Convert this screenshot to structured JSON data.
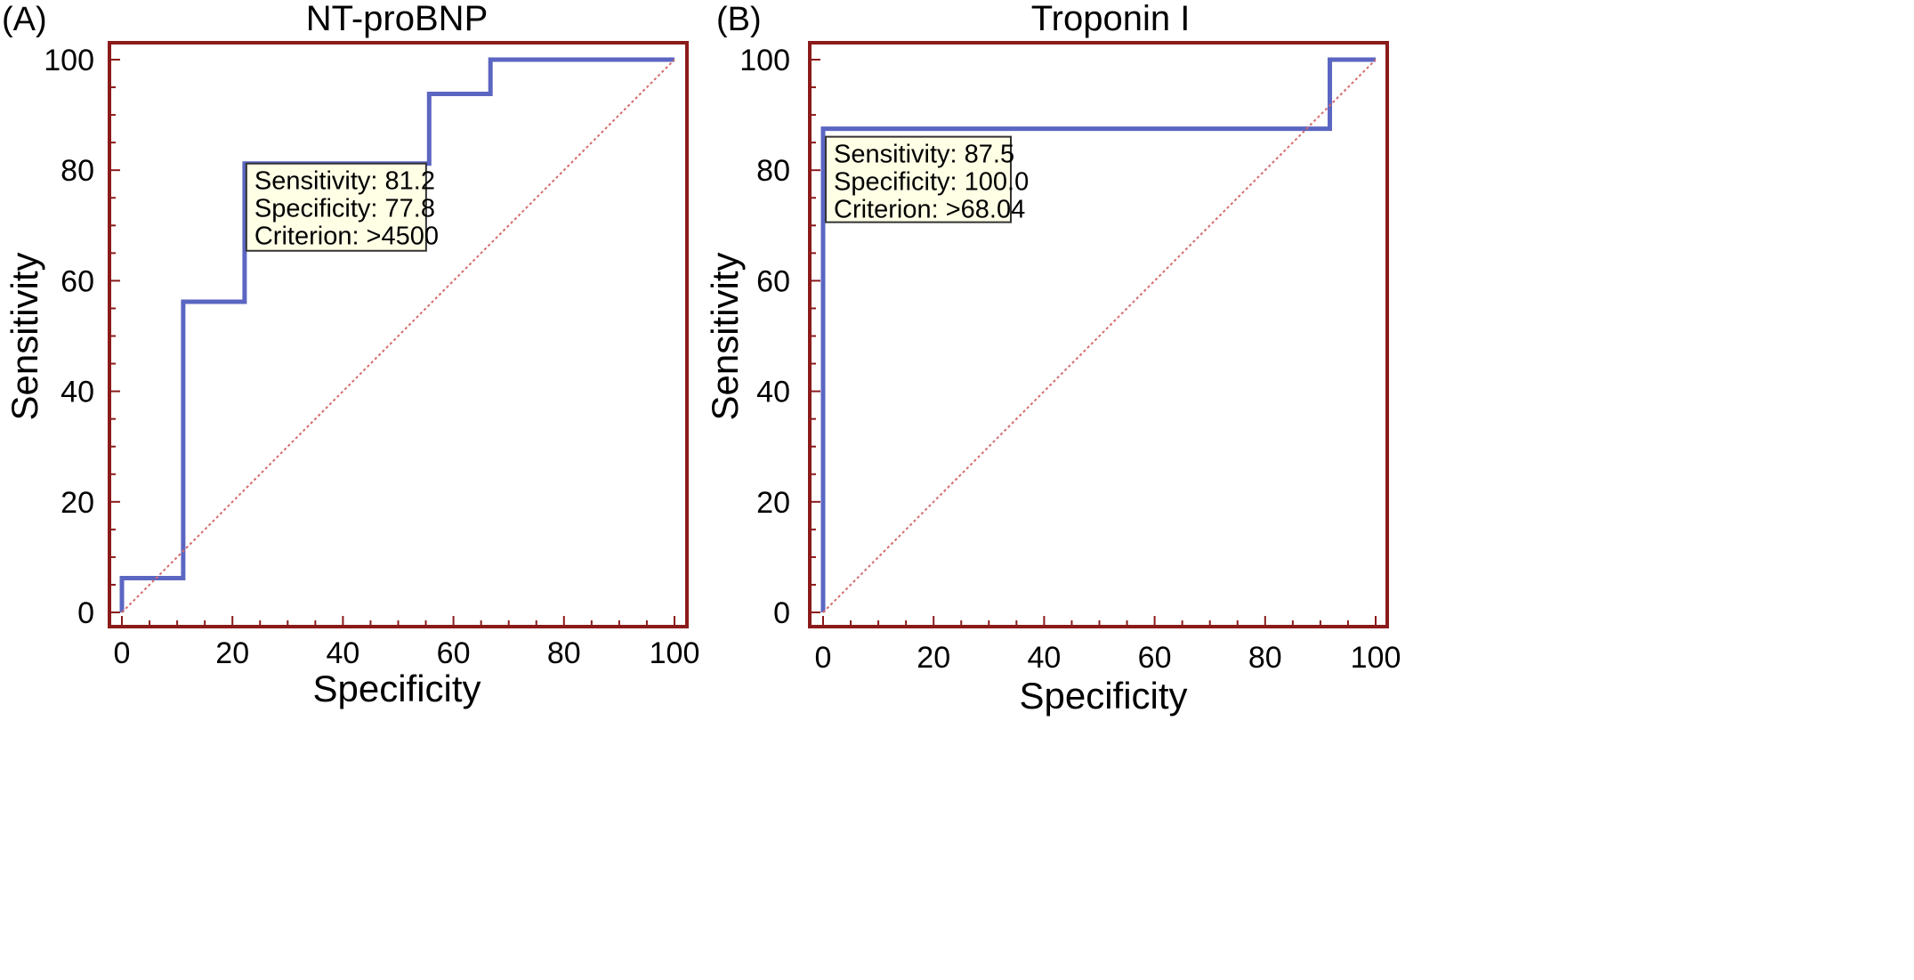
{
  "figure": {
    "panel_labels": [
      "(A)",
      "(B)"
    ]
  },
  "colors": {
    "frame": "#8b1a1a",
    "roc_curve": "#5b66c2",
    "diagonal": "#d46a6a",
    "annotation_fill": "#ffffe6",
    "annotation_border": "#333333"
  },
  "chart_data": [
    {
      "panel": "(A)",
      "type": "line",
      "title": "NT-proBNP",
      "xlabel": "Specificity",
      "ylabel": "Sensitivity",
      "xlim": [
        0,
        100
      ],
      "ylim": [
        0,
        100
      ],
      "xticks": [
        0,
        20,
        40,
        60,
        80,
        100
      ],
      "yticks": [
        0,
        20,
        40,
        60,
        80,
        100
      ],
      "grid": false,
      "series": [
        {
          "style": "step",
          "x": [
            0,
            0,
            11.1,
            11.1,
            22.2,
            22.2,
            55.6,
            55.6,
            66.7,
            66.7,
            100
          ],
          "y": [
            0,
            6.2,
            6.2,
            56.2,
            56.2,
            81.2,
            81.2,
            93.8,
            93.8,
            100,
            100
          ]
        },
        {
          "style": "reference-diagonal",
          "x": [
            0,
            100
          ],
          "y": [
            0,
            100
          ]
        }
      ],
      "annotation": {
        "anchor_x": 22.2,
        "anchor_y": 81.2,
        "lines": [
          "Sensitivity: 81.2",
          "Specificity: 77.8",
          "Criterion: >4500"
        ]
      }
    },
    {
      "panel": "(B)",
      "type": "line",
      "title": "Troponin I",
      "xlabel": "Specificity",
      "ylabel": "Sensitivity",
      "xlim": [
        0,
        100
      ],
      "ylim": [
        0,
        100
      ],
      "xticks": [
        0,
        20,
        40,
        60,
        80,
        100
      ],
      "yticks": [
        0,
        20,
        40,
        60,
        80,
        100
      ],
      "grid": false,
      "series": [
        {
          "style": "step",
          "x": [
            0,
            0,
            91.7,
            91.7,
            100
          ],
          "y": [
            0,
            87.5,
            87.5,
            100,
            100
          ]
        },
        {
          "style": "reference-diagonal",
          "x": [
            0,
            100
          ],
          "y": [
            0,
            100
          ]
        }
      ],
      "annotation": {
        "anchor_x": 0,
        "anchor_y": 87.5,
        "lines": [
          "Sensitivity: 87.5",
          "Specificity: 100.0",
          "Criterion: >68.04"
        ]
      }
    }
  ]
}
